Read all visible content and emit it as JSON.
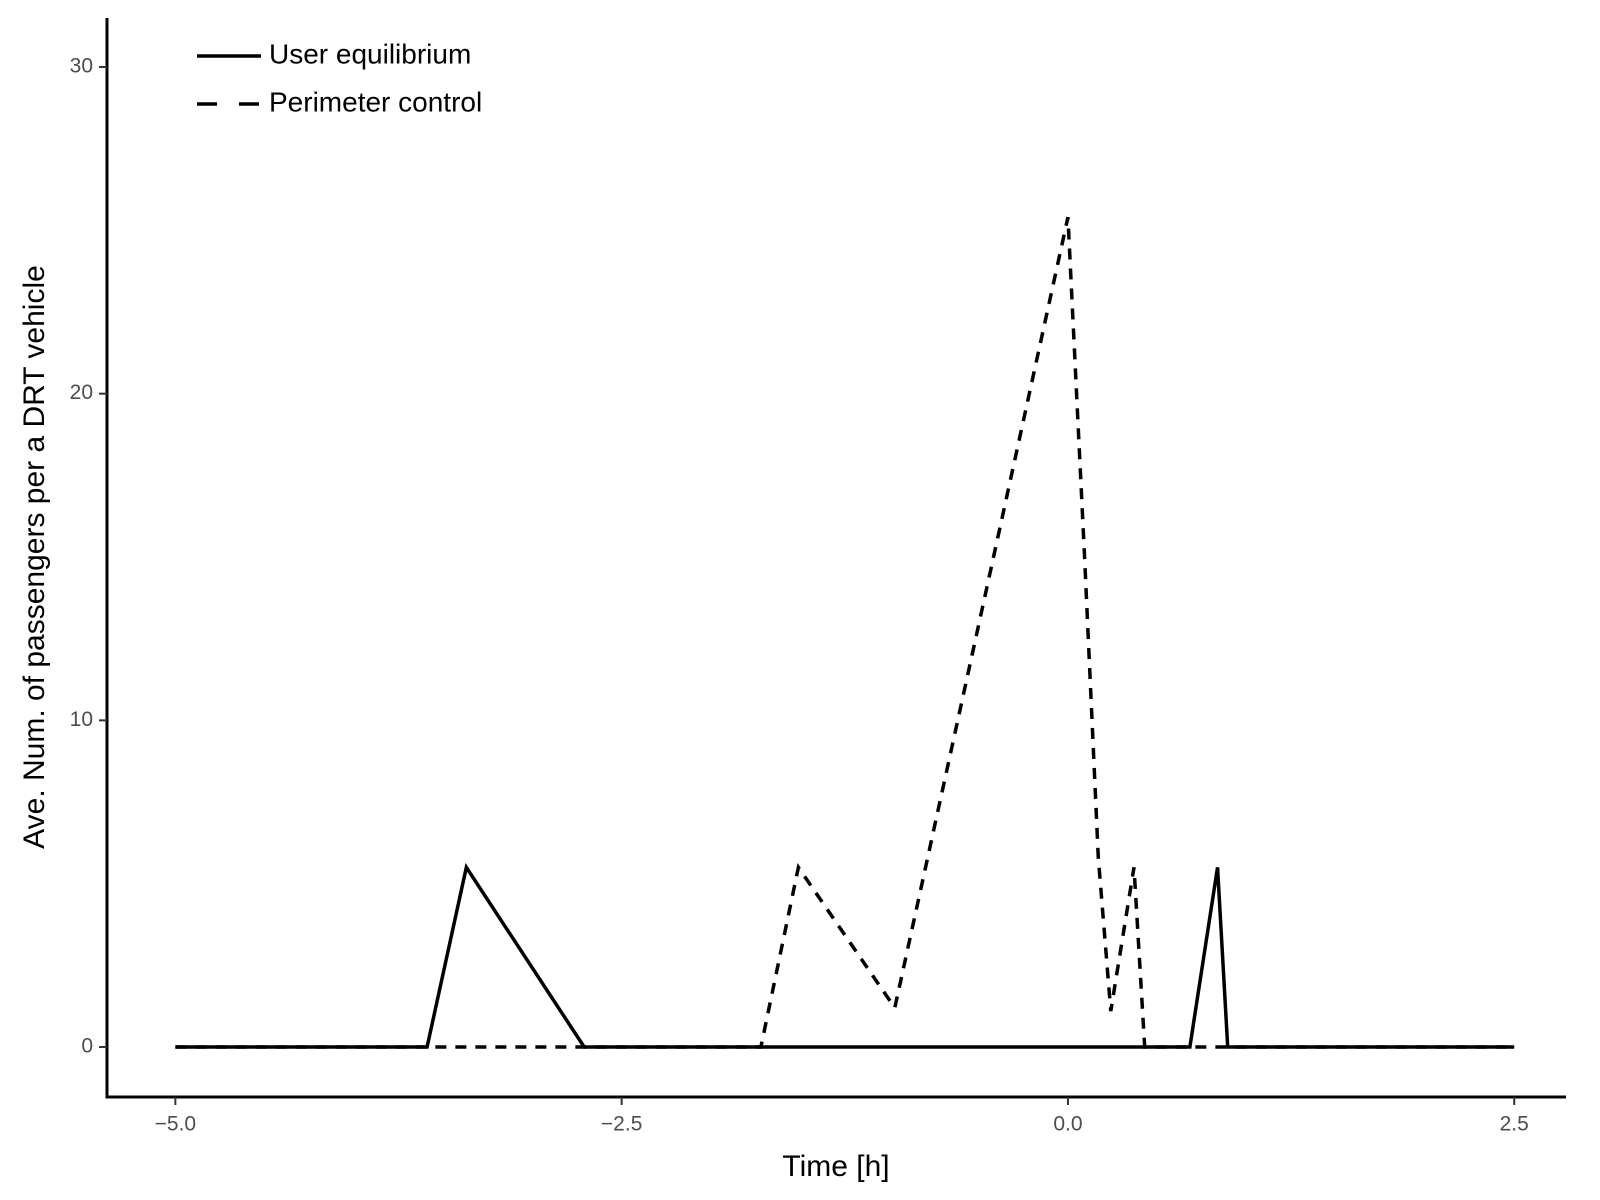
{
  "chart_data": {
    "type": "line",
    "x_label": "Time [h]",
    "y_label": "Ave. Num. of passengers per a DRT vehicle",
    "xlim": [
      -5.383,
      2.79
    ],
    "ylim": [
      -1.53,
      31.5
    ],
    "xticks": [
      {
        "value": -5,
        "label": "−5.0"
      },
      {
        "value": -2.5,
        "label": "−2.5"
      },
      {
        "value": 0,
        "label": "0.0"
      },
      2.5
    ],
    "yticks": [
      0,
      10,
      20,
      30
    ],
    "legend": "top-left",
    "series": [
      {
        "name": "User equilibrium",
        "color": "#000000",
        "linestyle": "solid",
        "x": [
          -5,
          -3.59,
          -3.37,
          -2.71,
          0.683,
          0.838,
          0.895,
          2.5
        ],
        "values": [
          0,
          0,
          5.5,
          0,
          0,
          5.5,
          0,
          0
        ]
      },
      {
        "name": "Perimeter control",
        "color": "#000000",
        "linestyle": "dashed",
        "x": [
          -5,
          -1.72,
          -1.51,
          -0.97,
          0.0,
          0.094,
          0.17,
          0.24,
          0.37,
          0.43,
          2.5
        ],
        "values": [
          0,
          0,
          5.5,
          1.2,
          25.4,
          14.9,
          5.8,
          1.1,
          5.5,
          0,
          0
        ]
      }
    ]
  }
}
